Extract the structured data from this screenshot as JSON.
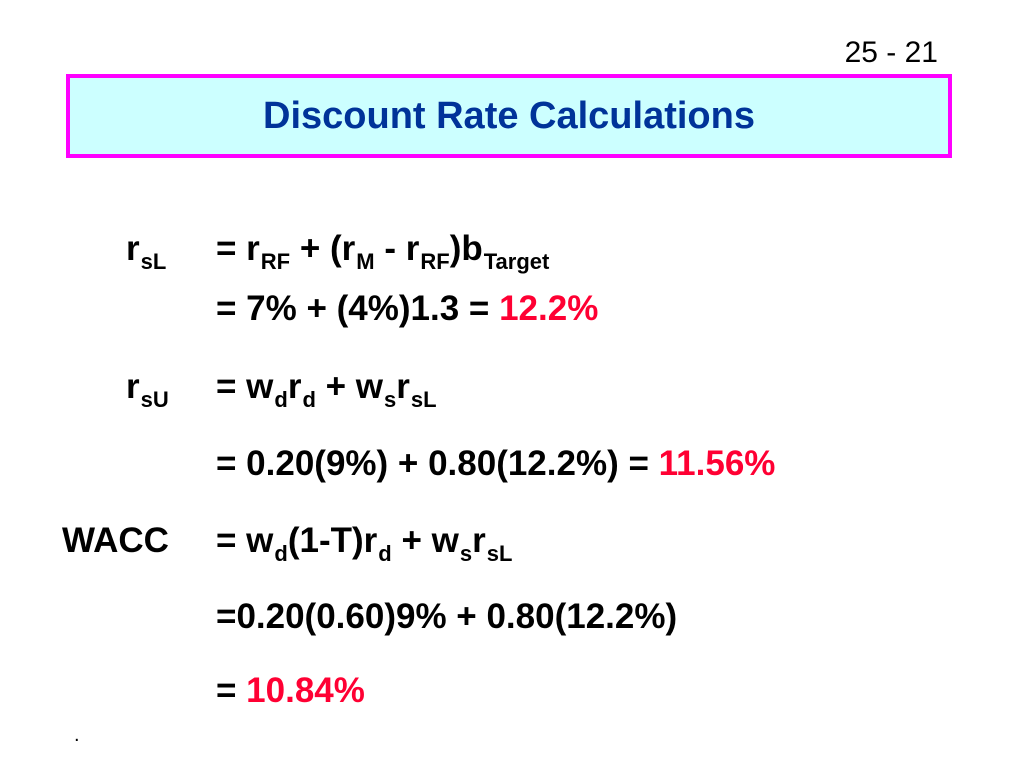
{
  "slide_number": "25 - 21",
  "title": "Discount Rate Calculations",
  "rsl_label": {
    "base": "r",
    "sub": "sL"
  },
  "rsl_eq1": {
    "p1": "= r",
    "s1": "RF",
    "p2": " + (r",
    "s2": "M",
    "p3": " - r",
    "s3": "RF",
    "p4": ")b",
    "s4": "Target"
  },
  "rsl_eq2": {
    "text": "= 7% + (4%)1.3 = ",
    "result": "12.2%"
  },
  "rsu_label": {
    "base": "r",
    "sub": "sU"
  },
  "rsu_eq1": {
    "p1": "= w",
    "s1": "d",
    "p2": "r",
    "s2": "d",
    "p3": " + w",
    "s3": "s",
    "p4": "r",
    "s4": "sL"
  },
  "rsu_eq2": {
    "text": "= 0.20(9%) + 0.80(12.2%) = ",
    "result": "11.56%"
  },
  "wacc_label": "WACC",
  "wacc_eq1": {
    "p1": "= w",
    "s1": "d",
    "p2": "(1-T)r",
    "s2": "d",
    "p3": " + w",
    "s3": "s",
    "p4": "r",
    "s4": "sL"
  },
  "wacc_eq2": {
    "text": "=0.20(0.60)9% + 0.80(12.2%)"
  },
  "wacc_eq3": {
    "text": "= ",
    "result": "10.84%"
  },
  "footer_mark": ".",
  "colors": {
    "title": "#003399",
    "title_bg": "#ccffff",
    "title_border": "#ff00ff",
    "result": "#ff0033"
  }
}
